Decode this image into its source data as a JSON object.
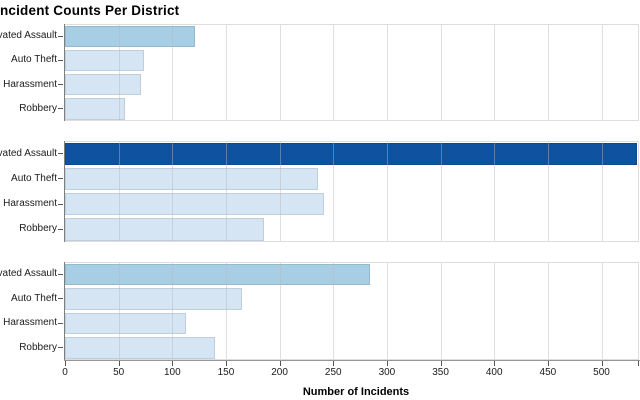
{
  "chart_data": {
    "type": "bar",
    "orientation": "horizontal",
    "title": "Incident Counts Per District",
    "xlabel": "Number of Incidents",
    "categories": [
      "Aggravated Assault",
      "Auto Theft",
      "Harassment",
      "Robbery"
    ],
    "x_ticks": [
      0,
      50,
      100,
      150,
      200,
      250,
      300,
      350,
      400,
      450,
      500
    ],
    "xlim": [
      0,
      534
    ],
    "grid": true,
    "legend": "none",
    "panels": [
      {
        "values": [
          121,
          74,
          71,
          56
        ],
        "bar_color_keys": [
          "medium",
          "light",
          "light",
          "light"
        ]
      },
      {
        "values": [
          533,
          236,
          241,
          185
        ],
        "bar_color_keys": [
          "dark",
          "light",
          "light",
          "light"
        ]
      },
      {
        "values": [
          284,
          165,
          113,
          140
        ],
        "bar_color_keys": [
          "medium",
          "light",
          "light",
          "light"
        ]
      }
    ],
    "palette": {
      "light": "#d6e5f4",
      "medium": "#a7cee4",
      "dark": "#0f52a0"
    },
    "colors": {
      "grid_line": "#e2e2e2",
      "panel_border": "#dddddd",
      "axis_domain": "#969696",
      "tick_mark": "#555555",
      "text": "#1a1a1a"
    }
  }
}
